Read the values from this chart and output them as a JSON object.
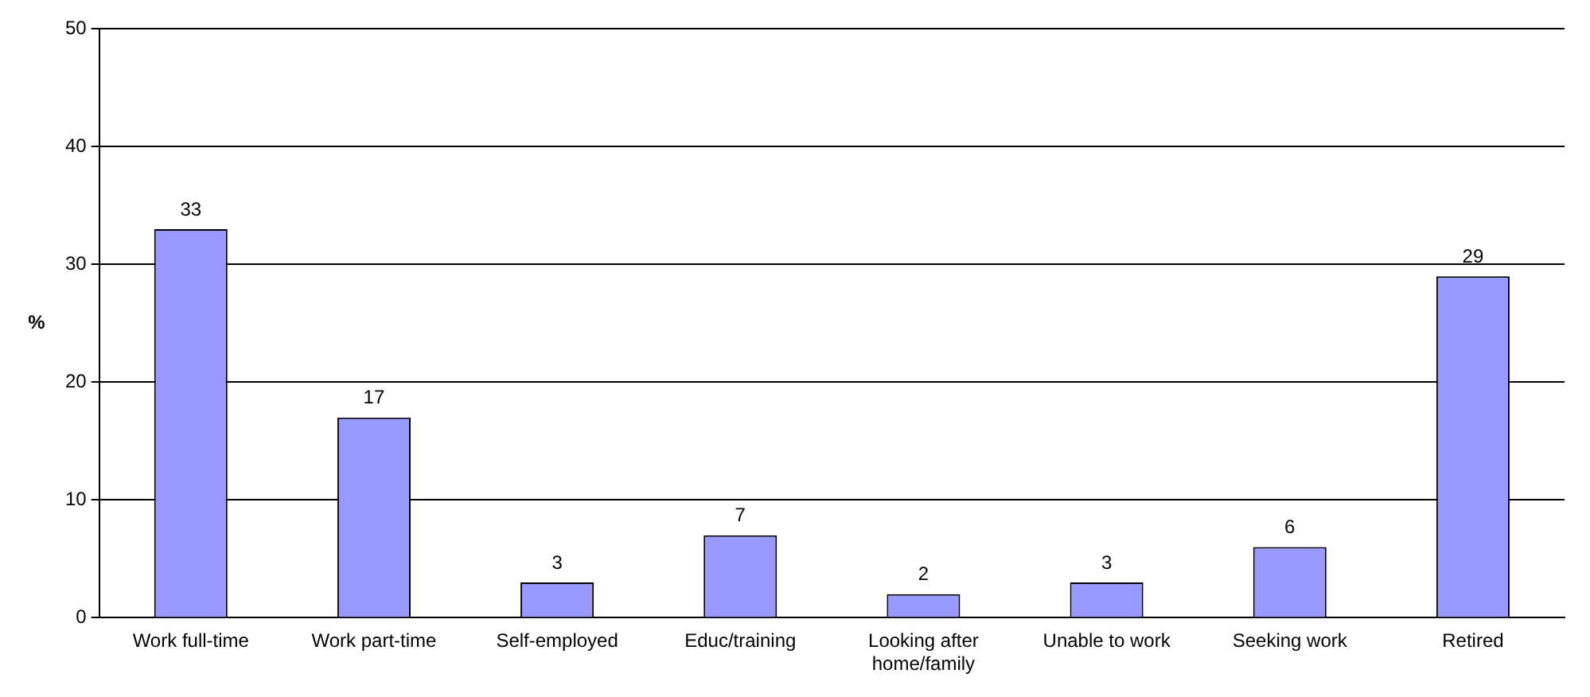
{
  "chart_data": {
    "type": "bar",
    "ylabel": "%",
    "categories": [
      "Work full-time",
      "Work part-time",
      "Self-employed",
      "Educ/training",
      "Looking after home/family",
      "Unable to work",
      "Seeking work",
      "Retired"
    ],
    "values": [
      33,
      17,
      3,
      7,
      2,
      3,
      6,
      29
    ],
    "color": "#9999ff",
    "ylim": [
      0,
      50
    ],
    "yticks": [
      0,
      10,
      20,
      30,
      40,
      50
    ],
    "grid": "y",
    "data_labels": true
  }
}
